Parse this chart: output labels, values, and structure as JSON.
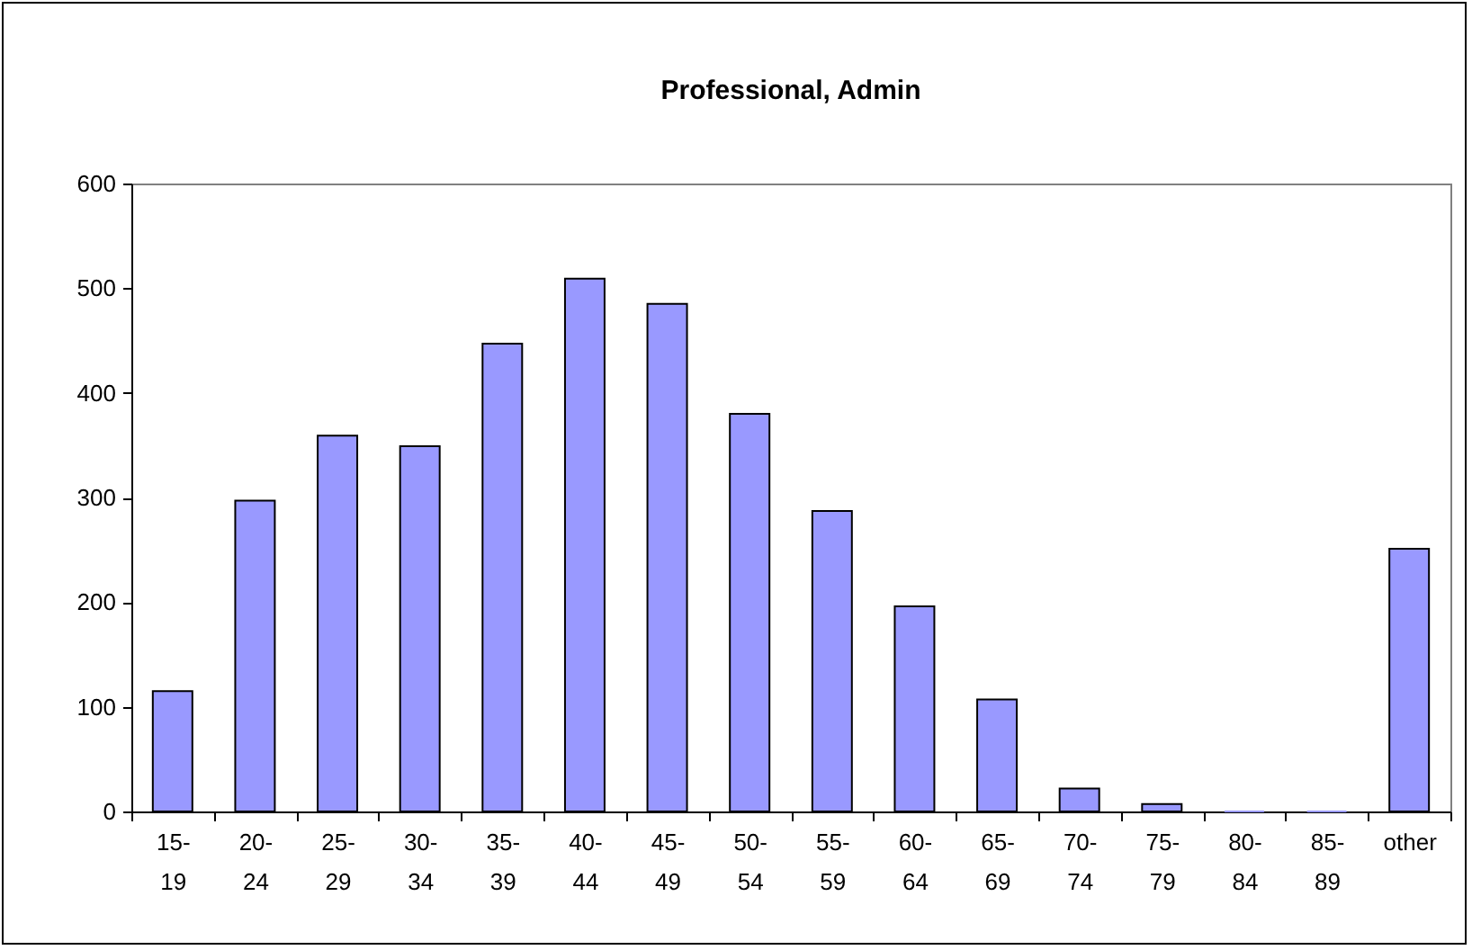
{
  "chart_data": {
    "type": "bar",
    "title": "Professional, Admin",
    "categories": [
      "15-19",
      "20-24",
      "25-29",
      "30-34",
      "35-39",
      "40-44",
      "45-49",
      "50-54",
      "55-59",
      "60-64",
      "65-69",
      "70-74",
      "75-79",
      "80-84",
      "85-89",
      "other"
    ],
    "values": [
      115,
      297,
      359,
      349,
      447,
      509,
      485,
      380,
      287,
      196,
      107,
      22,
      7,
      0,
      0,
      251
    ],
    "color": "#9999ff",
    "ylim": [
      0,
      600
    ],
    "yticks": [
      0,
      100,
      200,
      300,
      400,
      500,
      600
    ],
    "grid": false,
    "legend": false
  }
}
